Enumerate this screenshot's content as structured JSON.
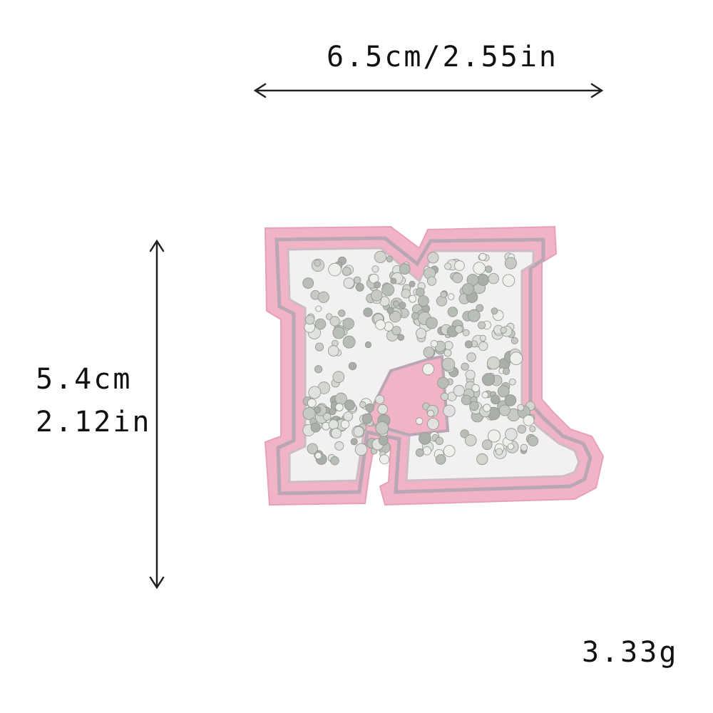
{
  "dimensions": {
    "width_label": "6.5cm/2.55in",
    "height_cm": "5.4cm",
    "height_in": "2.12in"
  },
  "weight": "3.33g",
  "product": {
    "letter": "M",
    "felt_color": "#f1b3c6",
    "stitch_color": "#b9a7b4",
    "rhinestone_color": "#c9ccc8"
  }
}
